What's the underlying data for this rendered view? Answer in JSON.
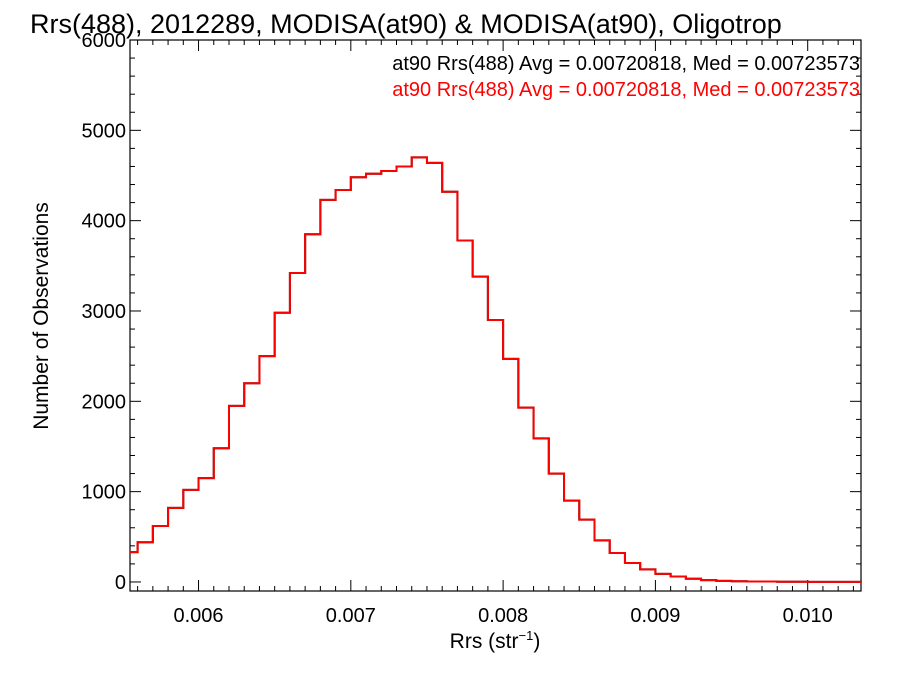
{
  "chart_data": {
    "type": "line",
    "step": true,
    "title": "Rrs(488), 2012289, MODISA(at90) & MODISA(at90), Oligotrop",
    "xlabel_main": "Rrs (str",
    "xlabel_sup": "−1",
    "xlabel_close": ")",
    "ylabel": "Number of Observations",
    "xlim": [
      0.00555,
      0.01035
    ],
    "ylim": [
      -100,
      6000
    ],
    "x_ticks": [
      0.006,
      0.007,
      0.008,
      0.009,
      0.01
    ],
    "x_tick_labels": [
      "0.006",
      "0.007",
      "0.008",
      "0.009",
      "0.010"
    ],
    "y_ticks": [
      0,
      1000,
      2000,
      3000,
      4000,
      5000,
      6000
    ],
    "y_tick_labels": [
      "0",
      "1000",
      "2000",
      "3000",
      "4000",
      "5000",
      "6000"
    ],
    "grid": false,
    "legend_position": "top-right",
    "series": [
      {
        "name": "at90 Rrs(488) Avg = 0.00720818, Med = 0.00723573",
        "color": "#000000",
        "x": [
          0.00555,
          0.0056,
          0.0057,
          0.0058,
          0.0059,
          0.006,
          0.0061,
          0.0062,
          0.0063,
          0.0064,
          0.0065,
          0.0066,
          0.0067,
          0.0068,
          0.0069,
          0.007,
          0.0071,
          0.0072,
          0.0073,
          0.0074,
          0.0075,
          0.0076,
          0.0077,
          0.0078,
          0.0079,
          0.008,
          0.0081,
          0.0082,
          0.0083,
          0.0084,
          0.0085,
          0.0086,
          0.0087,
          0.0088,
          0.0089,
          0.009,
          0.0091,
          0.0092,
          0.0093,
          0.0094,
          0.0095,
          0.0096,
          0.0098,
          0.01,
          0.01035
        ],
        "y": [
          330,
          440,
          620,
          820,
          1020,
          1150,
          1480,
          1950,
          2200,
          2500,
          2980,
          3420,
          3850,
          4230,
          4340,
          4480,
          4520,
          4550,
          4600,
          4700,
          4640,
          4320,
          3780,
          3380,
          2900,
          2470,
          1930,
          1590,
          1200,
          900,
          690,
          460,
          320,
          210,
          140,
          90,
          60,
          35,
          20,
          12,
          8,
          5,
          3,
          1,
          0
        ]
      },
      {
        "name": "at90 Rrs(488) Avg = 0.00720818, Med = 0.00723573",
        "color": "#ff0000",
        "x": [
          0.00555,
          0.0056,
          0.0057,
          0.0058,
          0.0059,
          0.006,
          0.0061,
          0.0062,
          0.0063,
          0.0064,
          0.0065,
          0.0066,
          0.0067,
          0.0068,
          0.0069,
          0.007,
          0.0071,
          0.0072,
          0.0073,
          0.0074,
          0.0075,
          0.0076,
          0.0077,
          0.0078,
          0.0079,
          0.008,
          0.0081,
          0.0082,
          0.0083,
          0.0084,
          0.0085,
          0.0086,
          0.0087,
          0.0088,
          0.0089,
          0.009,
          0.0091,
          0.0092,
          0.0093,
          0.0094,
          0.0095,
          0.0096,
          0.0098,
          0.01,
          0.01035
        ],
        "y": [
          330,
          440,
          620,
          820,
          1020,
          1150,
          1480,
          1950,
          2200,
          2500,
          2980,
          3420,
          3850,
          4230,
          4340,
          4480,
          4520,
          4550,
          4600,
          4700,
          4640,
          4320,
          3780,
          3380,
          2900,
          2470,
          1930,
          1590,
          1200,
          900,
          690,
          460,
          320,
          210,
          140,
          90,
          60,
          35,
          20,
          12,
          8,
          5,
          3,
          1,
          0
        ]
      }
    ]
  }
}
